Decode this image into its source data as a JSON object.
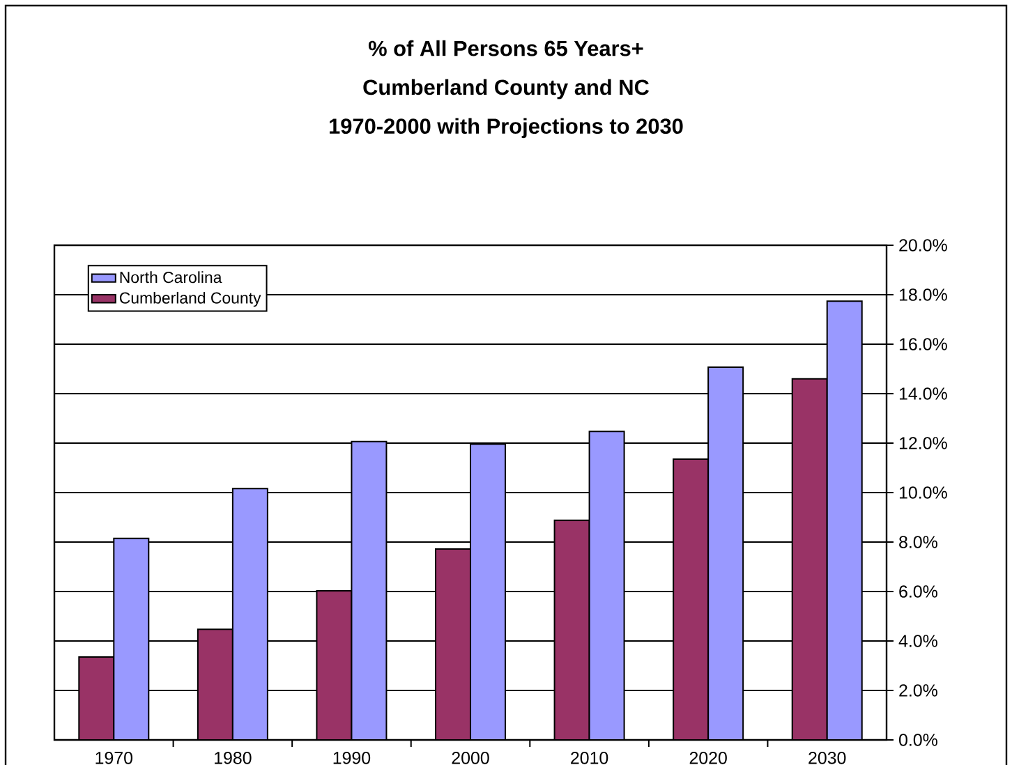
{
  "chart_data": {
    "type": "bar",
    "title": "% of All Persons 65 Years+\nCumberland County and NC\n1970-2000 with Projections to 2030",
    "categories": [
      "1970",
      "1980",
      "1990",
      "2000",
      "2010",
      "2020",
      "2030"
    ],
    "series": [
      {
        "name": "Cumberland County",
        "color": "#993366",
        "values": [
          3.35,
          4.47,
          6.03,
          7.72,
          8.88,
          11.35,
          14.6
        ]
      },
      {
        "name": "North Carolina",
        "color": "#9999ff",
        "values": [
          8.15,
          10.16,
          12.06,
          11.96,
          12.47,
          15.07,
          17.74
        ]
      }
    ],
    "ylim": [
      0,
      20
    ],
    "yticks": [
      {
        "value": 0,
        "label": "0.0%"
      },
      {
        "value": 2,
        "label": "2.0%"
      },
      {
        "value": 4,
        "label": "4.0%"
      },
      {
        "value": 6,
        "label": "6.0%"
      },
      {
        "value": 8,
        "label": "8.0%"
      },
      {
        "value": 10,
        "label": "10.0%"
      },
      {
        "value": 12,
        "label": "12.0%"
      },
      {
        "value": 14,
        "label": "14.0%"
      },
      {
        "value": 16,
        "label": "16.0%"
      },
      {
        "value": 18,
        "label": "18.0%"
      },
      {
        "value": 20,
        "label": "20.0%"
      }
    ],
    "grid": "y",
    "legend": "top left"
  }
}
